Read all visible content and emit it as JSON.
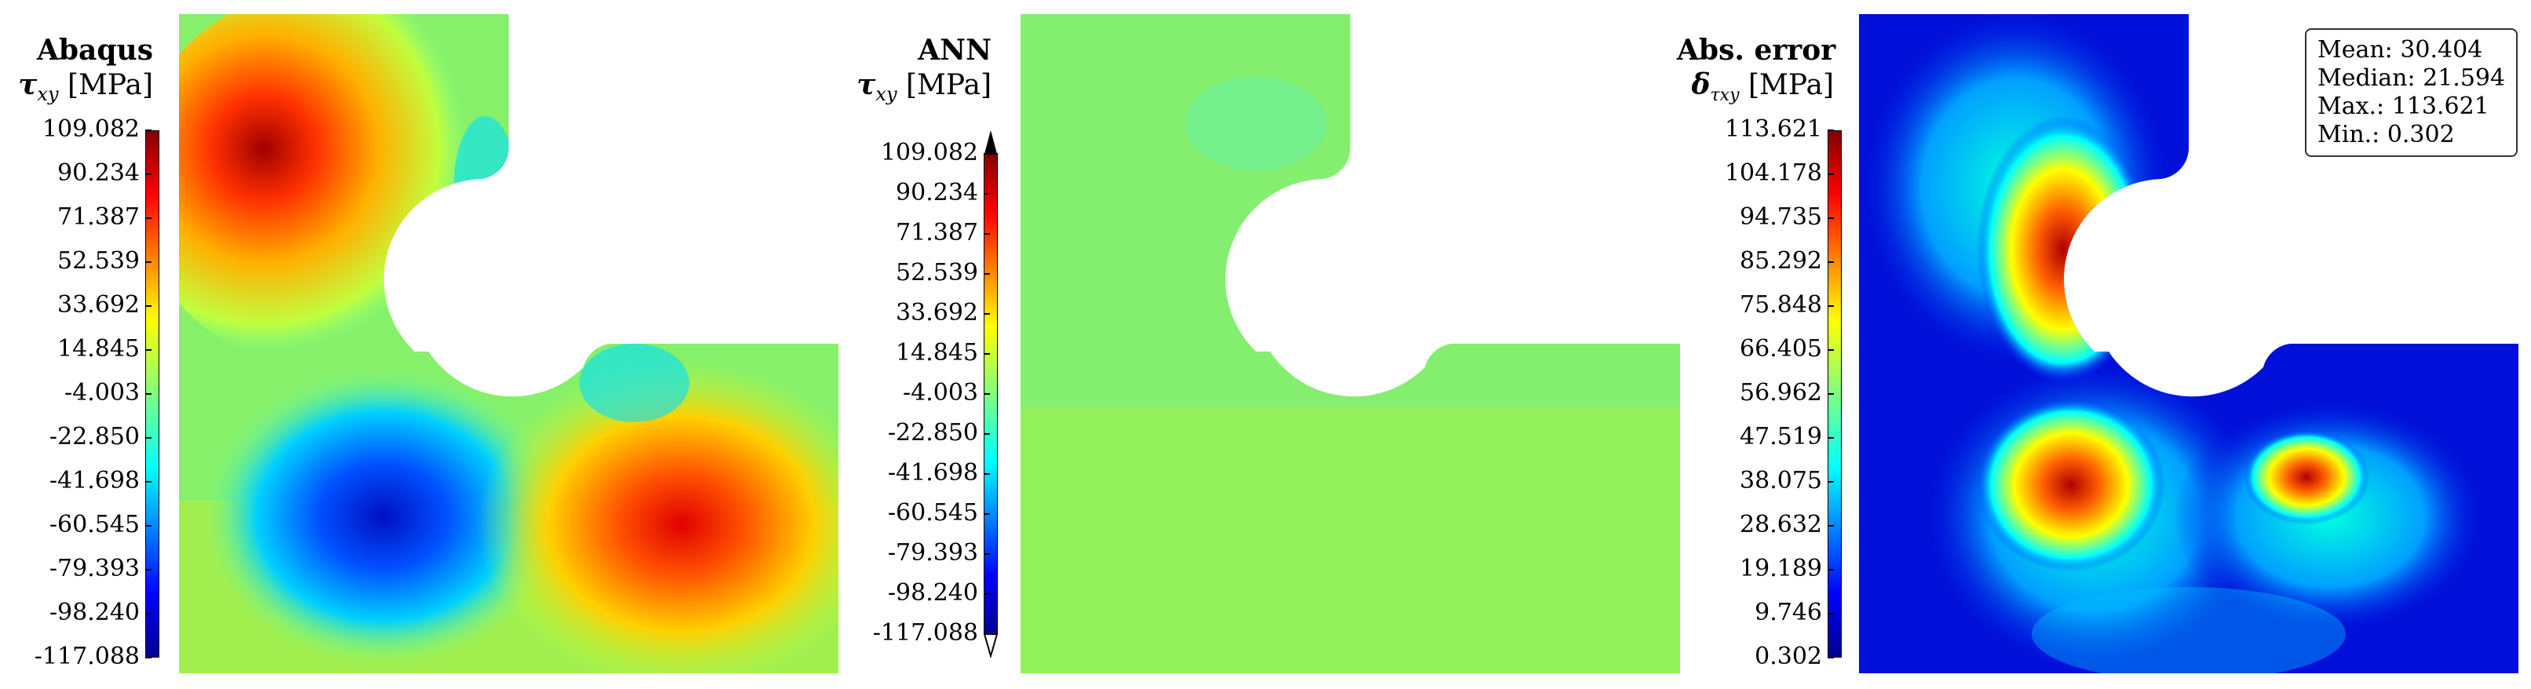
{
  "panels": [
    {
      "title": "Abaqus",
      "quantity": "τ",
      "subscript": "xy",
      "unit": "[MPa]",
      "colorbar_ticks": [
        "109.082",
        "90.234",
        "71.387",
        "52.539",
        "33.692",
        "14.845",
        "-4.003",
        "-22.850",
        "-41.698",
        "-60.545",
        "-79.393",
        "-98.240",
        "-117.088"
      ]
    },
    {
      "title": "ANN",
      "quantity": "τ",
      "subscript": "xy",
      "unit": "[MPa]",
      "colorbar_ticks": [
        "109.082",
        "90.234",
        "71.387",
        "52.539",
        "33.692",
        "14.845",
        "-4.003",
        "-22.850",
        "-41.698",
        "-60.545",
        "-79.393",
        "-98.240",
        "-117.088"
      ]
    },
    {
      "title": "Abs. error",
      "quantity": "δ",
      "subscript": "τxy",
      "unit": "[MPa]",
      "colorbar_ticks": [
        "113.621",
        "104.178",
        "94.735",
        "85.292",
        "75.848",
        "66.405",
        "56.962",
        "47.519",
        "38.075",
        "28.632",
        "19.189",
        "9.746",
        "0.302"
      ]
    }
  ],
  "stats": {
    "mean": "Mean: 30.404",
    "median": "Median: 21.594",
    "max": "Max.: 113.621",
    "min": "Min.: 0.302"
  },
  "colors": {
    "jet_dark_red": "#7f0000",
    "jet_red": "#ff2000",
    "jet_yellow": "#ffff00",
    "jet_cyan": "#00ffff",
    "jet_blue": "#0000ff",
    "jet_dark_blue": "#00008f",
    "ann_field": "#86f06a"
  }
}
